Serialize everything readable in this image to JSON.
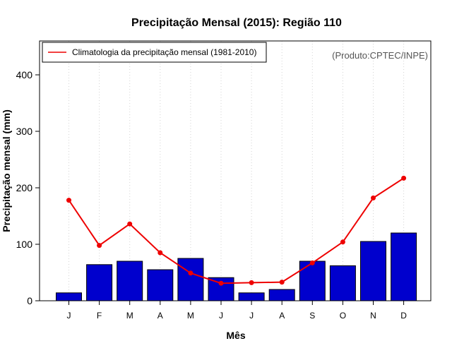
{
  "chart_data": {
    "type": "bar",
    "title": "Precipitação Mensal (2015): Região 110",
    "xlabel": "Mês",
    "ylabel": "Precipitação mensal (mm)",
    "ylim": [
      0,
      460
    ],
    "yticks": [
      0,
      100,
      200,
      300,
      400
    ],
    "categories": [
      "J",
      "F",
      "M",
      "A",
      "M",
      "J",
      "J",
      "A",
      "S",
      "O",
      "N",
      "D"
    ],
    "series": [
      {
        "name": "Precipitação mensal 2015",
        "type": "bar",
        "color": "#0000cd",
        "values": [
          14,
          64,
          70,
          55,
          75,
          41,
          14,
          20,
          70,
          62,
          105,
          120
        ]
      },
      {
        "name": "Climatologia da precipitação mensal (1981-2010)",
        "type": "line",
        "color": "#ee0000",
        "values": [
          178,
          98,
          136,
          85,
          49,
          31,
          32,
          33,
          67,
          104,
          182,
          217
        ]
      }
    ],
    "legend": {
      "position": "top-left",
      "label": "Climatologia da precipitação mensal (1981-2010)"
    },
    "credit": "(Produto:CPTEC/INPE)",
    "grid": "vertical dotted"
  }
}
